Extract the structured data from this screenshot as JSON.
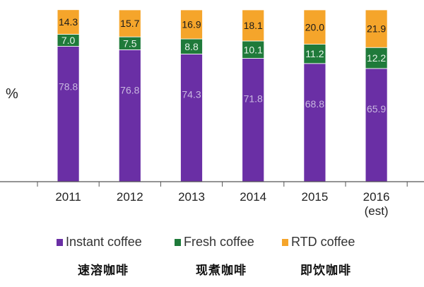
{
  "chart_data": {
    "type": "bar",
    "stacked": true,
    "unit_label": "%",
    "categories": [
      "2011",
      "2012",
      "2013",
      "2014",
      "2015",
      "2016\n(est)"
    ],
    "series": [
      {
        "name": "Instant coffee",
        "name_cn": "速溶咖啡",
        "color": "#6a2fa5",
        "label_color": "#c9b8e0",
        "values": [
          78.8,
          76.8,
          74.3,
          71.8,
          68.8,
          65.9
        ]
      },
      {
        "name": "Fresh coffee",
        "name_cn": "现煮咖啡",
        "color": "#1f7a3a",
        "label_color": "#e6f3e9",
        "values": [
          7.0,
          7.5,
          8.8,
          10.1,
          11.2,
          12.2
        ]
      },
      {
        "name": "RTD coffee",
        "name_cn": "即饮咖啡",
        "color": "#f5a52b",
        "label_color": "#1a1a1a",
        "values": [
          14.3,
          15.7,
          16.9,
          18.1,
          20.0,
          21.9
        ]
      }
    ],
    "ylim": [
      0,
      100
    ],
    "grid": false,
    "legend_position": "bottom"
  }
}
